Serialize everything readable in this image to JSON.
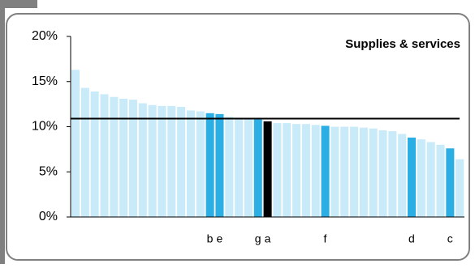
{
  "chart_data": {
    "type": "bar",
    "title": "Supplies & services",
    "categories": [
      null,
      null,
      null,
      null,
      null,
      null,
      null,
      null,
      null,
      null,
      null,
      null,
      null,
      null,
      "b",
      "e",
      null,
      null,
      null,
      "g",
      "a",
      null,
      null,
      null,
      null,
      null,
      "f",
      null,
      null,
      null,
      null,
      null,
      null,
      null,
      null,
      "d",
      null,
      null,
      null,
      "c",
      null
    ],
    "values": [
      16.3,
      14.3,
      13.9,
      13.6,
      13.3,
      13.1,
      13.0,
      12.6,
      12.4,
      12.3,
      12.3,
      12.2,
      11.8,
      11.7,
      11.5,
      11.4,
      11.1,
      11.0,
      10.9,
      10.8,
      10.6,
      10.4,
      10.4,
      10.3,
      10.3,
      10.2,
      10.1,
      10.0,
      10.0,
      10.0,
      9.9,
      9.8,
      9.6,
      9.5,
      9.2,
      8.8,
      8.6,
      8.3,
      8.0,
      7.6,
      6.4
    ],
    "colors": [
      "#c9ebf9",
      "#c9ebf9",
      "#c9ebf9",
      "#c9ebf9",
      "#c9ebf9",
      "#c9ebf9",
      "#c9ebf9",
      "#c9ebf9",
      "#c9ebf9",
      "#c9ebf9",
      "#c9ebf9",
      "#c9ebf9",
      "#c9ebf9",
      "#c9ebf9",
      "#2aaee4",
      "#2aaee4",
      "#c9ebf9",
      "#c9ebf9",
      "#c9ebf9",
      "#2aaee4",
      "#000000",
      "#c9ebf9",
      "#c9ebf9",
      "#c9ebf9",
      "#c9ebf9",
      "#c9ebf9",
      "#2aaee4",
      "#c9ebf9",
      "#c9ebf9",
      "#c9ebf9",
      "#c9ebf9",
      "#c9ebf9",
      "#c9ebf9",
      "#c9ebf9",
      "#c9ebf9",
      "#2aaee4",
      "#c9ebf9",
      "#c9ebf9",
      "#c9ebf9",
      "#2aaee4",
      "#c9ebf9"
    ],
    "reference_line": 10.9,
    "ylim": [
      0,
      20
    ],
    "yticks": [
      {
        "value": 0,
        "label": "0%"
      },
      {
        "value": 5,
        "label": "5%"
      },
      {
        "value": 10,
        "label": "10%"
      },
      {
        "value": 15,
        "label": "15%"
      },
      {
        "value": 20,
        "label": "20%"
      }
    ]
  }
}
